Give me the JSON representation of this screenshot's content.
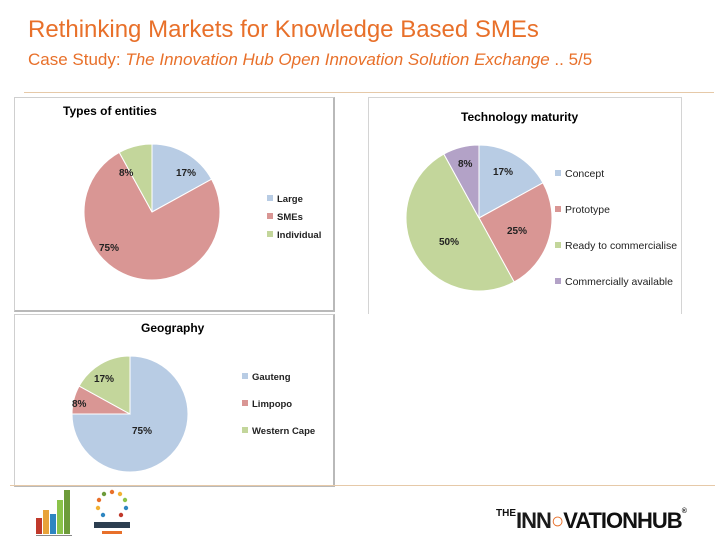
{
  "header": {
    "title": "Rethinking Markets for Knowledge Based SMEs",
    "subtitle_prefix": "Case Study: ",
    "subtitle_italic": "The Innovation Hub Open Innovation Solution Exchange",
    "subtitle_suffix": " .. 5/5"
  },
  "chart_data": [
    {
      "type": "pie",
      "title": "Types of entities",
      "slices": [
        {
          "label": "Large",
          "value": 17,
          "display": "17%",
          "color": "#b8cce4"
        },
        {
          "label": "SMEs",
          "value": 75,
          "display": "75%",
          "color": "#d99694"
        },
        {
          "label": "Individual",
          "value": 8,
          "display": "8%",
          "color": "#c3d69b"
        }
      ],
      "legend": "right"
    },
    {
      "type": "pie",
      "title": "Technology maturity",
      "slices": [
        {
          "label": "Concept",
          "value": 17,
          "display": "17%",
          "color": "#b8cce4"
        },
        {
          "label": "Prototype",
          "value": 25,
          "display": "25%",
          "color": "#d99694"
        },
        {
          "label": "Ready to commercialise",
          "value": 50,
          "display": "50%",
          "color": "#c3d69b"
        },
        {
          "label": "Commercially available",
          "value": 8,
          "display": "8%",
          "color": "#b3a2c7"
        }
      ],
      "legend": "right"
    },
    {
      "type": "pie",
      "title": "Geography",
      "slices": [
        {
          "label": "Gauteng",
          "value": 75,
          "display": "75%",
          "color": "#b8cce4"
        },
        {
          "label": "Limpopo",
          "value": 8,
          "display": "8%",
          "color": "#d99694"
        },
        {
          "label": "Western Cape",
          "value": 17,
          "display": "17%",
          "color": "#c3d69b"
        }
      ],
      "legend": "right"
    }
  ],
  "footer": {
    "logo_right": {
      "the": "THE",
      "part1": "INN",
      "part2": "VATIONHUB",
      "reg": "®"
    }
  }
}
